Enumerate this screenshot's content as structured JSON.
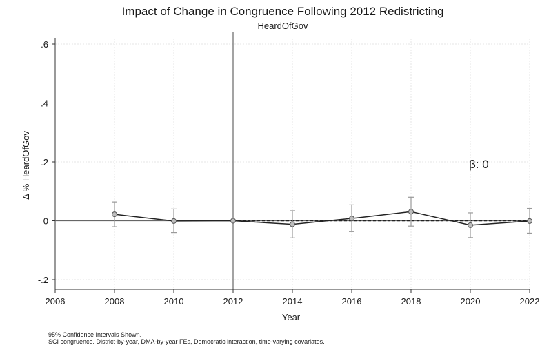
{
  "chart_data": {
    "type": "line",
    "title": "Impact of Change in Congruence Following 2012 Redistricting",
    "subtitle": "HeardOfGov",
    "xlabel": "Year",
    "ylabel": "Δ % HeardOfGov",
    "xlim": [
      2006,
      2022
    ],
    "ylim": [
      -0.2,
      0.6
    ],
    "x_ticks": [
      "2006",
      "2008",
      "2010",
      "2012",
      "2014",
      "2016",
      "2018",
      "2020",
      "2022"
    ],
    "y_ticks": [
      {
        "value": -0.2,
        "label": "-.2"
      },
      {
        "value": 0,
        "label": "0"
      },
      {
        "value": 0.2,
        "label": ".2"
      },
      {
        "value": 0.4,
        "label": ".4"
      },
      {
        "value": 0.6,
        "label": ".6"
      }
    ],
    "grid": true,
    "reference_line_x": 2012,
    "series": [
      {
        "x": [
          2008,
          2010,
          2012,
          2014,
          2016,
          2018,
          2020,
          2022
        ],
        "values": [
          0.022,
          -0.001,
          0.0,
          -0.012,
          0.008,
          0.031,
          -0.015,
          -0.001
        ],
        "ci_low": [
          -0.02,
          -0.04,
          0.0,
          -0.058,
          -0.037,
          -0.018,
          -0.057,
          -0.042
        ],
        "ci_high": [
          0.064,
          0.04,
          0.0,
          0.034,
          0.054,
          0.08,
          0.027,
          0.042
        ]
      }
    ],
    "fit_line": {
      "style": "dashed",
      "y": 0
    },
    "annotation": "β: 0",
    "notes": [
      "95% Confidence Intervals Shown.",
      "SCI congruence. District-by-year, DMA-by-year FEs, Democratic interaction, time-varying covariates."
    ],
    "colors": {
      "line": "#222222",
      "marker_fill": "#bdbdbd",
      "ci": "#9a9a9a",
      "grid": "#e6e6e6",
      "zero_line": "#666666"
    }
  }
}
